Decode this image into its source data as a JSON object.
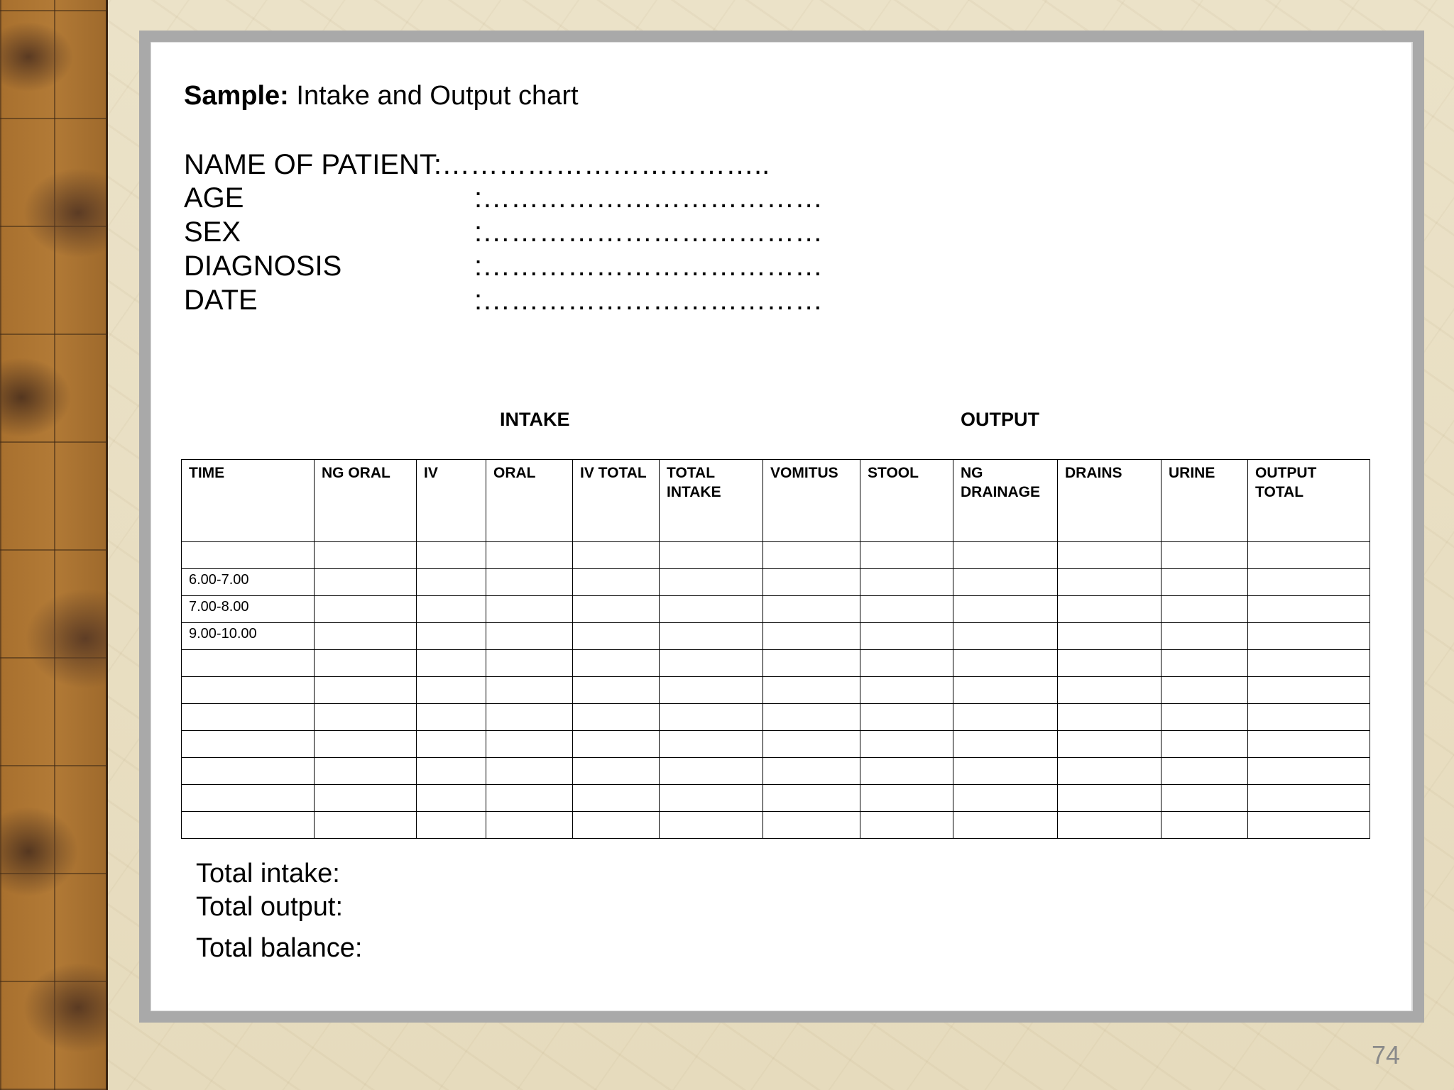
{
  "slide": {
    "title_bold": "Sample:",
    "title_rest": " Intake and Output chart",
    "fields": [
      {
        "label": "NAME OF PATIENT:",
        "value": "…………………………….."
      },
      {
        "label": "AGE",
        "value": ":………………………………"
      },
      {
        "label": "SEX",
        "value": ":………………………………"
      },
      {
        "label": "DIAGNOSIS",
        "value": ":………………………………"
      },
      {
        "label": "DATE",
        "value": ":………………………………"
      }
    ],
    "intake_heading": "INTAKE",
    "output_heading": "OUTPUT",
    "table": {
      "columns": [
        "TIME",
        "NG ORAL",
        "IV",
        "ORAL",
        "IV TOTAL",
        "TOTAL INTAKE",
        "VOMITUS",
        "STOOL",
        "NG DRAINAGE",
        "DRAINS",
        "URINE",
        "OUTPUT TOTAL"
      ],
      "time_rows": [
        "",
        "6.00-7.00",
        "7.00-8.00",
        "9.00-10.00",
        "",
        "",
        "",
        "",
        "",
        "",
        ""
      ]
    },
    "totals": {
      "intake": "Total intake:",
      "output": "Total output:",
      "balance": "Total balance:"
    },
    "page_number": "74"
  }
}
